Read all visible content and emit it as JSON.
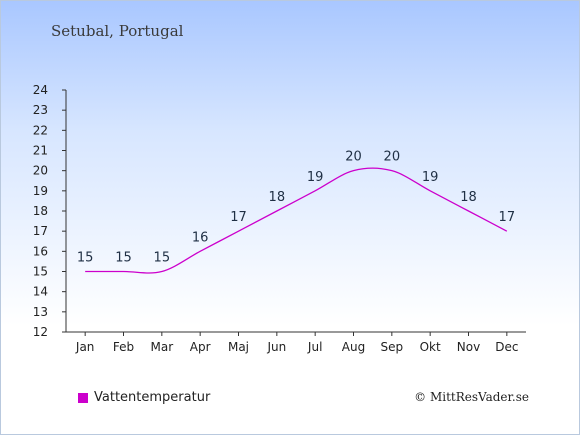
{
  "chart_data": {
    "type": "line",
    "title": "Setubal, Portugal",
    "categories": [
      "Jan",
      "Feb",
      "Mar",
      "Apr",
      "Maj",
      "Jun",
      "Jul",
      "Aug",
      "Sep",
      "Okt",
      "Nov",
      "Dec"
    ],
    "series": [
      {
        "name": "Vattentemperatur",
        "values": [
          15,
          15,
          15,
          16,
          17,
          18,
          19,
          20,
          20,
          19,
          18,
          17
        ],
        "color": "#cc00cc"
      }
    ],
    "ylim": [
      12,
      24
    ],
    "yticks": [
      12,
      13,
      14,
      15,
      16,
      17,
      18,
      19,
      20,
      21,
      22,
      23,
      24
    ],
    "grid": false,
    "legend": "bottom-left"
  },
  "credit": "© MittResVader.se"
}
